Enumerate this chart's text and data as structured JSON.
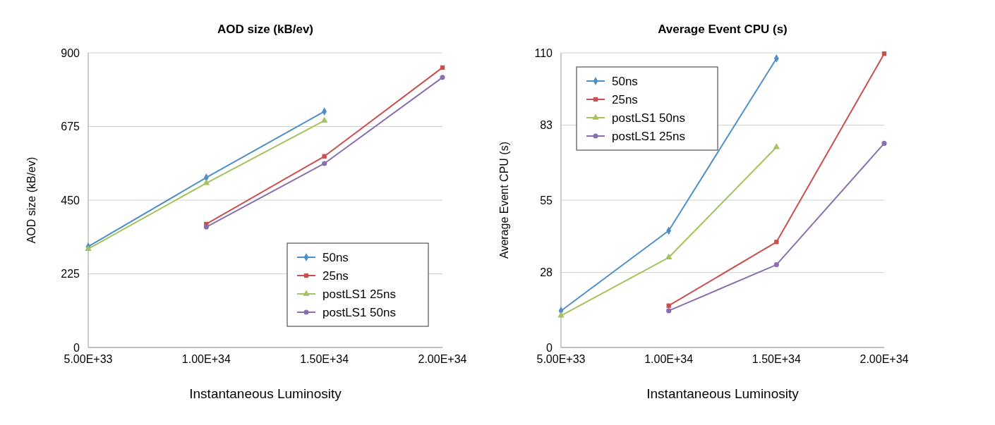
{
  "chart_data": [
    {
      "type": "line",
      "title": "AOD size (kB/ev)",
      "xlabel": "Instantaneous Luminosity",
      "ylabel": "AOD  size (kB/ev)",
      "xlim": [
        5e+33,
        2e+34
      ],
      "xticks": [
        {
          "value": 5e+33,
          "label": "5.00E+33"
        },
        {
          "value": 1e+34,
          "label": "1.00E+34"
        },
        {
          "value": 1.5e+34,
          "label": "1.50E+34"
        },
        {
          "value": 2e+34,
          "label": "2.00E+34"
        }
      ],
      "ylim": [
        0,
        900
      ],
      "yticks": [
        0,
        225,
        450,
        675,
        900
      ],
      "grid": "y",
      "legend": "bottom right",
      "series": [
        {
          "name": "50ns",
          "color": "#4f8fc9",
          "marker": "diamond",
          "x": [
            5e+33,
            1e+34,
            1.5e+34
          ],
          "values": [
            308,
            519,
            721
          ]
        },
        {
          "name": "25ns",
          "color": "#c9504d",
          "marker": "square",
          "x": [
            1e+34,
            1.5e+34,
            2e+34
          ],
          "values": [
            377,
            584,
            855
          ]
        },
        {
          "name": "postLS1 25ns",
          "color": "#a4c35c",
          "marker": "triangle",
          "x": [
            5e+33,
            1e+34,
            1.5e+34
          ],
          "values": [
            301,
            502,
            693
          ]
        },
        {
          "name": "postLS1 50ns",
          "color": "#8a6fb0",
          "marker": "circle",
          "x": [
            1e+34,
            1.5e+34,
            2e+34
          ],
          "values": [
            368,
            562,
            825
          ]
        }
      ]
    },
    {
      "type": "line",
      "title": "Average Event CPU (s)",
      "xlabel": "Instantaneous Luminosity",
      "ylabel": "Average Event CPU (s)",
      "xlim": [
        5e+33,
        2e+34
      ],
      "xticks": [
        {
          "value": 5e+33,
          "label": "5.00E+33"
        },
        {
          "value": 1e+34,
          "label": "1.00E+34"
        },
        {
          "value": 1.5e+34,
          "label": "1.50E+34"
        },
        {
          "value": 2e+34,
          "label": "2.00E+34"
        }
      ],
      "ylim": [
        0,
        110
      ],
      "yticks": [
        0,
        28,
        55,
        83,
        110
      ],
      "grid": "y",
      "legend": "top left",
      "series": [
        {
          "name": "50ns",
          "color": "#4f8fc9",
          "marker": "diamond",
          "x": [
            5e+33,
            1e+34,
            1.5e+34
          ],
          "values": [
            13.7,
            43.6,
            107.9
          ]
        },
        {
          "name": "25ns",
          "color": "#c9504d",
          "marker": "square",
          "x": [
            1e+34,
            1.5e+34,
            2e+34
          ],
          "values": [
            15.6,
            39.4,
            109.7
          ]
        },
        {
          "name": "postLS1 50ns",
          "color": "#a4c35c",
          "marker": "triangle",
          "x": [
            5e+33,
            1e+34,
            1.5e+34
          ],
          "values": [
            11.9,
            33.6,
            74.8
          ]
        },
        {
          "name": "postLS1 25ns",
          "color": "#8a6fb0",
          "marker": "circle",
          "x": [
            1e+34,
            1.5e+34,
            2e+34
          ],
          "values": [
            13.7,
            30.9,
            76.2
          ]
        }
      ]
    }
  ]
}
